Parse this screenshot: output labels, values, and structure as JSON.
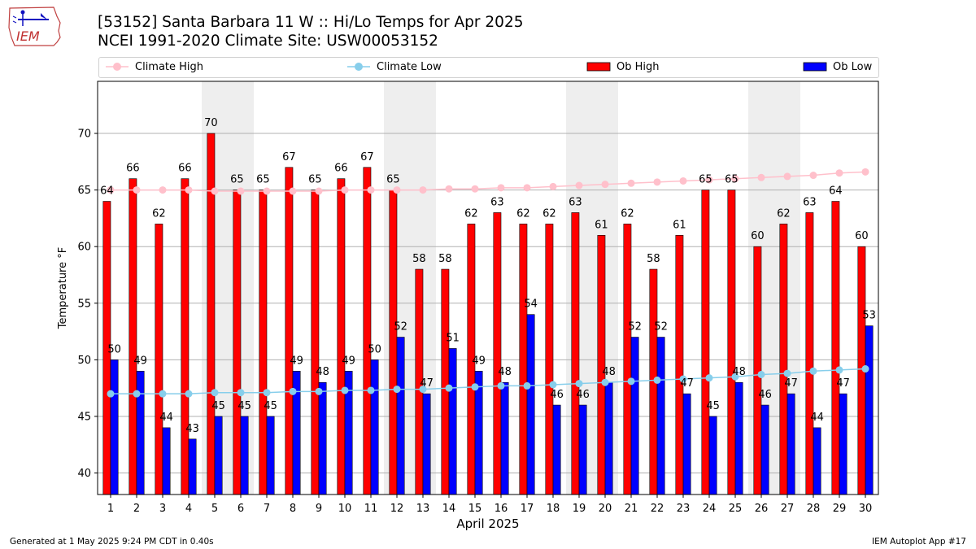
{
  "header": {
    "logo_text": "IEM",
    "title": "[53152] Santa Barbara 11 W :: Hi/Lo Temps for Apr 2025",
    "subtitle": "NCEI 1991-2020 Climate Site: USW00053152"
  },
  "footer": {
    "generated": "Generated at 1 May 2025 9:24 PM CDT in 0.40s",
    "app": "IEM Autoplot App #17"
  },
  "colors": {
    "ob_high": "#ff0000",
    "ob_low": "#0000ff",
    "climate_high": "#ffc0cb",
    "climate_low": "#87ceeb",
    "weekend_shade": "#eeeeee"
  },
  "chart_data": {
    "type": "bar",
    "xlabel": "April 2025",
    "ylabel": "Temperature °F",
    "ylim": [
      38.1,
      74.6
    ],
    "yticks": [
      40,
      45,
      50,
      55,
      60,
      65,
      70
    ],
    "grid": true,
    "legend_position": "top",
    "shaded_days": [
      [
        5,
        6
      ],
      [
        12,
        13
      ],
      [
        19,
        20
      ],
      [
        26,
        27
      ]
    ],
    "categories": [
      "1",
      "2",
      "3",
      "4",
      "5",
      "6",
      "7",
      "8",
      "9",
      "10",
      "11",
      "12",
      "13",
      "14",
      "15",
      "16",
      "17",
      "18",
      "19",
      "20",
      "21",
      "22",
      "23",
      "24",
      "25",
      "26",
      "27",
      "28",
      "29",
      "30"
    ],
    "series": [
      {
        "name": "Climate High",
        "kind": "line",
        "values": [
          65.0,
          65.0,
          65.0,
          65.0,
          64.9,
          64.9,
          64.9,
          64.9,
          64.9,
          65.0,
          65.0,
          65.0,
          65.0,
          65.1,
          65.1,
          65.2,
          65.2,
          65.3,
          65.4,
          65.5,
          65.6,
          65.7,
          65.8,
          65.9,
          66.0,
          66.1,
          66.2,
          66.3,
          66.5,
          66.6
        ]
      },
      {
        "name": "Climate Low",
        "kind": "line",
        "values": [
          47.0,
          47.0,
          47.0,
          47.0,
          47.1,
          47.1,
          47.1,
          47.2,
          47.2,
          47.3,
          47.3,
          47.4,
          47.4,
          47.5,
          47.6,
          47.7,
          47.7,
          47.8,
          47.9,
          48.0,
          48.1,
          48.2,
          48.3,
          48.4,
          48.5,
          48.7,
          48.8,
          49.0,
          49.1,
          49.2
        ]
      },
      {
        "name": "Ob High",
        "kind": "bar",
        "values": [
          64,
          66,
          62,
          66,
          70,
          65,
          65,
          67,
          65,
          66,
          67,
          65,
          58,
          58,
          62,
          63,
          62,
          62,
          63,
          61,
          62,
          58,
          61,
          65,
          65,
          60,
          62,
          63,
          64,
          60
        ]
      },
      {
        "name": "Ob Low",
        "kind": "bar",
        "values": [
          50,
          49,
          44,
          43,
          45,
          45,
          45,
          49,
          48,
          49,
          50,
          52,
          47,
          51,
          49,
          48,
          54,
          46,
          46,
          48,
          52,
          52,
          47,
          45,
          48,
          46,
          47,
          44,
          47,
          53
        ]
      }
    ]
  }
}
